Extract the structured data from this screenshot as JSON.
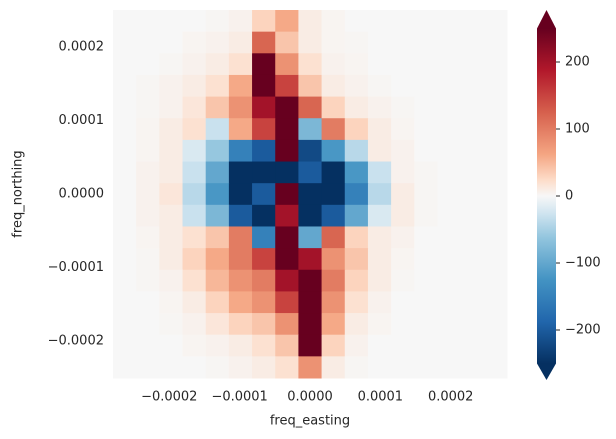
{
  "chart_data": {
    "type": "heatmap",
    "xlabel": "freq_easting",
    "ylabel": "freq_northing",
    "xlim": [
      -0.00028,
      0.00028
    ],
    "ylim": [
      -0.00025,
      0.00025
    ],
    "xticks": [
      {
        "value": -0.0002,
        "label": "−0.0002"
      },
      {
        "value": -0.0001,
        "label": "−0.0001"
      },
      {
        "value": 0,
        "label": "0.0000"
      },
      {
        "value": 0.0001,
        "label": "0.0001"
      },
      {
        "value": 0.0002,
        "label": "0.0002"
      }
    ],
    "yticks": [
      {
        "value": -0.0002,
        "label": "−0.0002"
      },
      {
        "value": -0.0001,
        "label": "−0.0001"
      },
      {
        "value": 0,
        "label": "0.0000"
      },
      {
        "value": 0.0001,
        "label": "0.0001"
      },
      {
        "value": 0.0002,
        "label": "0.0002"
      }
    ],
    "colormap": "RdBu_r",
    "clim": [
      -250,
      250
    ],
    "cticks": [
      {
        "value": -200,
        "label": "−200"
      },
      {
        "value": -100,
        "label": "−100"
      },
      0,
      100,
      200
    ],
    "z": [
      [
        0,
        0,
        0,
        0,
        2,
        5,
        30,
        60,
        10,
        3,
        0,
        0,
        0,
        0,
        0,
        0,
        0
      ],
      [
        0,
        0,
        0,
        3,
        5,
        10,
        120,
        40,
        10,
        3,
        2,
        0,
        0,
        0,
        0,
        0,
        0
      ],
      [
        0,
        0,
        2,
        5,
        10,
        20,
        260,
        80,
        20,
        5,
        3,
        0,
        0,
        0,
        0,
        0,
        0
      ],
      [
        0,
        2,
        5,
        10,
        20,
        60,
        260,
        150,
        40,
        10,
        5,
        2,
        0,
        0,
        0,
        0,
        0
      ],
      [
        0,
        2,
        5,
        15,
        40,
        80,
        200,
        260,
        120,
        30,
        10,
        5,
        2,
        0,
        0,
        0,
        0
      ],
      [
        0,
        3,
        10,
        20,
        -30,
        60,
        150,
        260,
        -80,
        100,
        30,
        10,
        3,
        0,
        0,
        0,
        0
      ],
      [
        0,
        3,
        10,
        -20,
        -60,
        -150,
        -200,
        260,
        -220,
        -120,
        -40,
        10,
        5,
        0,
        0,
        0,
        0
      ],
      [
        0,
        5,
        10,
        -30,
        -100,
        -250,
        -260,
        -260,
        -200,
        -260,
        -120,
        -30,
        5,
        2,
        0,
        0,
        0
      ],
      [
        0,
        5,
        15,
        -40,
        -120,
        -260,
        -200,
        260,
        -260,
        -260,
        -150,
        -40,
        10,
        2,
        0,
        0,
        0
      ],
      [
        0,
        5,
        10,
        -30,
        -80,
        -200,
        -260,
        200,
        -260,
        -200,
        -100,
        -20,
        10,
        2,
        0,
        0,
        0
      ],
      [
        0,
        3,
        10,
        20,
        40,
        100,
        -150,
        260,
        -100,
        120,
        30,
        10,
        5,
        0,
        0,
        0,
        0
      ],
      [
        0,
        2,
        10,
        30,
        60,
        100,
        150,
        260,
        200,
        80,
        40,
        10,
        3,
        0,
        0,
        0,
        0
      ],
      [
        0,
        2,
        5,
        20,
        50,
        80,
        100,
        200,
        260,
        100,
        30,
        10,
        2,
        0,
        0,
        0,
        0
      ],
      [
        0,
        0,
        3,
        10,
        30,
        60,
        80,
        150,
        260,
        80,
        20,
        5,
        0,
        0,
        0,
        0,
        0
      ],
      [
        0,
        0,
        2,
        5,
        15,
        30,
        40,
        80,
        260,
        60,
        10,
        3,
        0,
        0,
        0,
        0,
        0
      ],
      [
        0,
        0,
        0,
        3,
        5,
        10,
        20,
        40,
        260,
        30,
        5,
        0,
        0,
        0,
        0,
        0,
        0
      ],
      [
        0,
        0,
        0,
        0,
        2,
        5,
        10,
        20,
        80,
        10,
        2,
        0,
        0,
        0,
        0,
        0,
        0
      ]
    ]
  }
}
